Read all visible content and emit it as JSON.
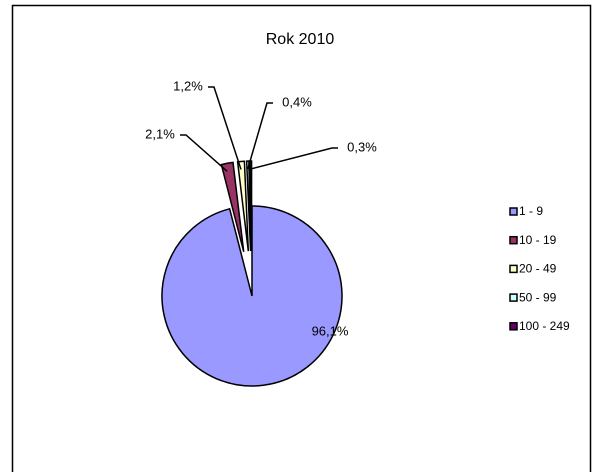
{
  "chart_data": {
    "type": "pie",
    "title": "Rok 2010",
    "categories": [
      "1 - 9",
      "10 - 19",
      "20 - 49",
      "50 - 99",
      "100 - 249"
    ],
    "values": [
      96.1,
      2.1,
      1.2,
      0.4,
      0.3
    ],
    "value_labels": [
      "96,1%",
      "2,1%",
      "1,2%",
      "0,4%",
      "0,3%"
    ],
    "colors": [
      "#9999ff",
      "#993366",
      "#ffffcc",
      "#ccffff",
      "#660066"
    ],
    "legend": "right"
  }
}
